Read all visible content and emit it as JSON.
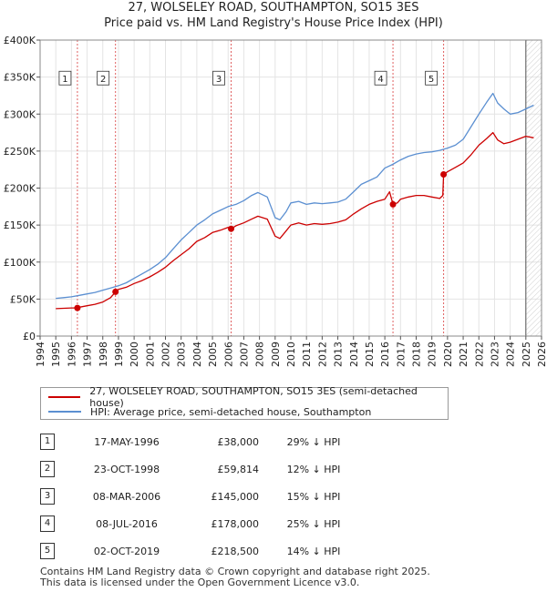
{
  "title_line1": "27, WOLSELEY ROAD, SOUTHAMPTON, SO15 3ES",
  "title_line2": "Price paid vs. HM Land Registry's House Price Index (HPI)",
  "colors": {
    "property": "#cc0000",
    "hpi": "#5b8fd1",
    "vline": "#e06060",
    "plot_bg": "#ffffff"
  },
  "chart_data": {
    "type": "line",
    "title": "27, WOLSELEY ROAD, SOUTHAMPTON, SO15 3ES — Price paid vs. HM Land Registry's House Price Index (HPI)",
    "xlim": [
      1994,
      2026
    ],
    "ylim": [
      0,
      400000
    ],
    "x_ticks": [
      "1994",
      "1995",
      "1996",
      "1997",
      "1998",
      "1999",
      "2000",
      "2001",
      "2002",
      "2003",
      "2004",
      "2005",
      "2006",
      "2007",
      "2008",
      "2009",
      "2010",
      "2011",
      "2012",
      "2013",
      "2014",
      "2015",
      "2016",
      "2017",
      "2018",
      "2019",
      "2020",
      "2021",
      "2022",
      "2023",
      "2024",
      "2025",
      "2026"
    ],
    "y_ticks": [
      {
        "value": 0,
        "label": "£0"
      },
      {
        "value": 50000,
        "label": "£50K"
      },
      {
        "value": 100000,
        "label": "£100K"
      },
      {
        "value": 150000,
        "label": "£150K"
      },
      {
        "value": 200000,
        "label": "£200K"
      },
      {
        "value": 250000,
        "label": "£250K"
      },
      {
        "value": 300000,
        "label": "£300K"
      },
      {
        "value": 350000,
        "label": "£350K"
      },
      {
        "value": 400000,
        "label": "£400K"
      }
    ],
    "series": [
      {
        "name": "HPI: Average price, semi-detached house, Southampton",
        "x": [
          1995.0,
          1995.5,
          1996.0,
          1996.5,
          1997.0,
          1997.5,
          1998.0,
          1998.5,
          1999.0,
          1999.5,
          2000.0,
          2000.5,
          2001.0,
          2001.5,
          2002.0,
          2002.5,
          2003.0,
          2003.5,
          2004.0,
          2004.5,
          2005.0,
          2005.5,
          2006.0,
          2006.5,
          2007.0,
          2007.5,
          2007.9,
          2008.5,
          2009.0,
          2009.3,
          2009.7,
          2010.0,
          2010.5,
          2011.0,
          2011.5,
          2012.0,
          2012.5,
          2013.0,
          2013.5,
          2014.0,
          2014.5,
          2015.0,
          2015.5,
          2016.0,
          2016.5,
          2017.0,
          2017.5,
          2018.0,
          2018.5,
          2019.0,
          2019.5,
          2020.0,
          2020.5,
          2021.0,
          2021.5,
          2022.0,
          2022.5,
          2022.9,
          2023.2,
          2023.6,
          2024.0,
          2024.5,
          2025.0,
          2025.5
        ],
        "values": [
          51000,
          52000,
          53000,
          55000,
          57000,
          59000,
          62000,
          65000,
          68000,
          72000,
          78000,
          84000,
          90000,
          97000,
          106000,
          118000,
          130000,
          140000,
          150000,
          157000,
          165000,
          170000,
          175000,
          178000,
          183000,
          190000,
          194000,
          188000,
          160000,
          157000,
          168000,
          180000,
          182000,
          178000,
          180000,
          179000,
          180000,
          181000,
          185000,
          195000,
          205000,
          210000,
          215000,
          227000,
          232000,
          238000,
          243000,
          246000,
          248000,
          249000,
          251000,
          254000,
          258000,
          266000,
          283000,
          300000,
          316000,
          328000,
          315000,
          307000,
          300000,
          302000,
          307000,
          312000
        ]
      },
      {
        "name": "27, WOLSELEY ROAD, SOUTHAMPTON, SO15 3ES (semi-detached house)",
        "x": [
          1995.0,
          1995.5,
          1996.0,
          1996.38,
          1996.5,
          1997.0,
          1997.5,
          1998.0,
          1998.5,
          1998.81,
          1999.0,
          1999.5,
          2000.0,
          2000.5,
          2001.0,
          2001.5,
          2002.0,
          2002.5,
          2003.0,
          2003.5,
          2004.0,
          2004.5,
          2005.0,
          2005.5,
          2006.0,
          2006.19,
          2006.5,
          2007.0,
          2007.5,
          2007.9,
          2008.5,
          2009.0,
          2009.3,
          2009.7,
          2010.0,
          2010.5,
          2011.0,
          2011.5,
          2012.0,
          2012.5,
          2013.0,
          2013.5,
          2014.0,
          2014.5,
          2015.0,
          2015.5,
          2016.0,
          2016.3,
          2016.52,
          2016.8,
          2017.0,
          2017.5,
          2018.0,
          2018.5,
          2019.0,
          2019.5,
          2019.7,
          2019.75,
          2020.0,
          2020.5,
          2021.0,
          2021.5,
          2022.0,
          2022.5,
          2022.9,
          2023.2,
          2023.6,
          2024.0,
          2024.5,
          2025.0,
          2025.5
        ],
        "values": [
          37000,
          37500,
          38000,
          38000,
          39000,
          41000,
          43000,
          46000,
          52000,
          59814,
          63000,
          66000,
          71000,
          75000,
          80000,
          86000,
          93000,
          102000,
          110000,
          118000,
          128000,
          133000,
          140000,
          143000,
          147000,
          145000,
          149000,
          153000,
          158000,
          162000,
          158000,
          135000,
          132000,
          142000,
          150000,
          153000,
          150000,
          152000,
          151000,
          152000,
          154000,
          157000,
          165000,
          172000,
          178000,
          182000,
          185000,
          195000,
          178000,
          180000,
          185000,
          188000,
          190000,
          190000,
          188000,
          186000,
          190000,
          218500,
          222000,
          228000,
          234000,
          245000,
          258000,
          267000,
          275000,
          265000,
          260000,
          262000,
          266000,
          270000,
          268000
        ]
      }
    ],
    "sales": [
      {
        "n": "1",
        "x": 1996.38,
        "value": 38000
      },
      {
        "n": "2",
        "x": 1998.81,
        "value": 59814
      },
      {
        "n": "3",
        "x": 2006.19,
        "value": 145000
      },
      {
        "n": "4",
        "x": 2016.52,
        "value": 178000
      },
      {
        "n": "5",
        "x": 2019.75,
        "value": 218500
      }
    ]
  },
  "legend": [
    {
      "label": "27, WOLSELEY ROAD, SOUTHAMPTON, SO15 3ES (semi-detached house)",
      "color": "#cc0000"
    },
    {
      "label": "HPI: Average price, semi-detached house, Southampton",
      "color": "#5b8fd1"
    }
  ],
  "sales_table": [
    {
      "num": "1",
      "date": "17-MAY-1996",
      "price": "£38,000",
      "hpi": "29% ↓ HPI"
    },
    {
      "num": "2",
      "date": "23-OCT-1998",
      "price": "£59,814",
      "hpi": "12% ↓ HPI"
    },
    {
      "num": "3",
      "date": "08-MAR-2006",
      "price": "£145,000",
      "hpi": "15% ↓ HPI"
    },
    {
      "num": "4",
      "date": "08-JUL-2016",
      "price": "£178,000",
      "hpi": "25% ↓ HPI"
    },
    {
      "num": "5",
      "date": "02-OCT-2019",
      "price": "£218,500",
      "hpi": "14% ↓ HPI"
    }
  ],
  "footer_line1": "Contains HM Land Registry data © Crown copyright and database right 2025.",
  "footer_line2": "This data is licensed under the Open Government Licence v3.0."
}
